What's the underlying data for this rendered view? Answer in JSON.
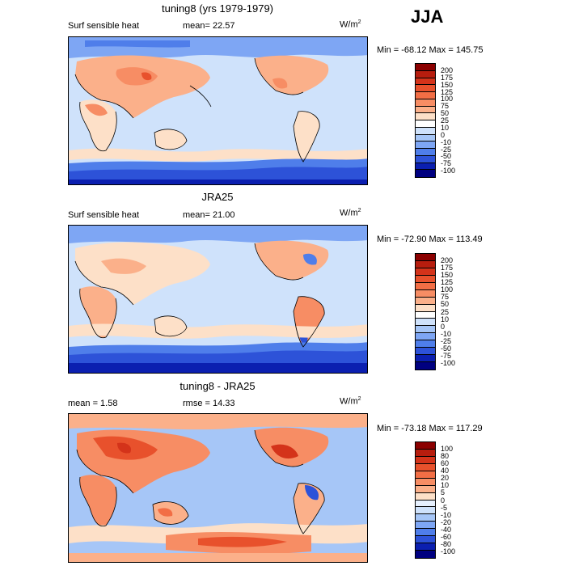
{
  "season": "JJA",
  "units": "W/m",
  "units_exp": "2",
  "panels": [
    {
      "title": "tuning8 (yrs 1979-1979)",
      "left_text": "Surf sensible heat",
      "stat_text": "mean=  22.57",
      "minmax": "Min = -68.12 Max = 145.75",
      "levels": [
        "200",
        "175",
        "150",
        "125",
        "100",
        "75",
        "50",
        "25",
        "10",
        "0",
        "-10",
        "-25",
        "-50",
        "-75",
        "-100"
      ],
      "colors": [
        "#8b0000",
        "#b71d0e",
        "#d4331a",
        "#e8512c",
        "#f26e45",
        "#f78d64",
        "#fbb08a",
        "#fde0c8",
        "#ffffff",
        "#cfe2fb",
        "#a6c6f7",
        "#7ea6f4",
        "#4f7eea",
        "#2d52d8",
        "#0b1fb0",
        "#000080"
      ]
    },
    {
      "title": "JRA25",
      "left_text": "Surf sensible heat",
      "stat_text": "mean=  21.00",
      "minmax": "Min = -72.90 Max = 113.49",
      "levels": [
        "200",
        "175",
        "150",
        "125",
        "100",
        "75",
        "50",
        "25",
        "10",
        "0",
        "-10",
        "-25",
        "-50",
        "-75",
        "-100"
      ],
      "colors": [
        "#8b0000",
        "#b71d0e",
        "#d4331a",
        "#e8512c",
        "#f26e45",
        "#f78d64",
        "#fbb08a",
        "#fde0c8",
        "#ffffff",
        "#cfe2fb",
        "#a6c6f7",
        "#7ea6f4",
        "#4f7eea",
        "#2d52d8",
        "#0b1fb0",
        "#000080"
      ]
    },
    {
      "title": "tuning8 - JRA25",
      "left_text": "mean =   1.58",
      "stat_text": "rmse =  14.33",
      "minmax": "Min = -73.18 Max = 117.29",
      "levels": [
        "100",
        "80",
        "60",
        "40",
        "20",
        "10",
        "5",
        "0",
        "-5",
        "-10",
        "-20",
        "-40",
        "-60",
        "-80",
        "-100"
      ],
      "colors": [
        "#8b0000",
        "#b71d0e",
        "#d4331a",
        "#e8512c",
        "#f26e45",
        "#f78d64",
        "#fbb08a",
        "#fde0c8",
        "#e6f0fe",
        "#cfe2fb",
        "#a6c6f7",
        "#7ea6f4",
        "#4f7eea",
        "#2d52d8",
        "#0b1fb0",
        "#000080"
      ]
    }
  ],
  "chart_data": [
    {
      "type": "heatmap",
      "title": "tuning8 (yrs 1979-1979)",
      "variable": "Surf sensible heat",
      "units": "W/m2",
      "mean": 22.57,
      "min": -68.12,
      "max": 145.75,
      "levels": [
        -100,
        -75,
        -50,
        -25,
        -10,
        0,
        10,
        25,
        50,
        75,
        100,
        125,
        150,
        175,
        200
      ]
    },
    {
      "type": "heatmap",
      "title": "JRA25",
      "variable": "Surf sensible heat",
      "units": "W/m2",
      "mean": 21.0,
      "min": -72.9,
      "max": 113.49,
      "levels": [
        -100,
        -75,
        -50,
        -25,
        -10,
        0,
        10,
        25,
        50,
        75,
        100,
        125,
        150,
        175,
        200
      ]
    },
    {
      "type": "heatmap",
      "title": "tuning8 - JRA25",
      "units": "W/m2",
      "mean": 1.58,
      "rmse": 14.33,
      "min": -73.18,
      "max": 117.29,
      "levels": [
        -100,
        -80,
        -60,
        -40,
        -20,
        -10,
        -5,
        0,
        5,
        10,
        20,
        40,
        60,
        80,
        100
      ]
    }
  ]
}
